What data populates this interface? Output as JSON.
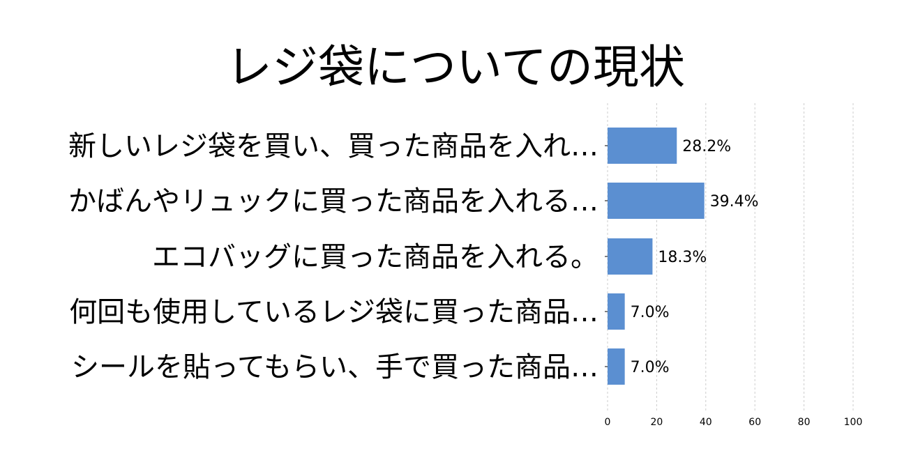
{
  "chart_data": {
    "type": "bar",
    "orientation": "horizontal",
    "title": "レジ袋についての現状",
    "categories": [
      "新しいレジ袋を買い、買った商品を入れ…",
      "かばんやリュックに買った商品を入れる…",
      "エコバッグに買った商品を入れる。",
      "何回も使用しているレジ袋に買った商品…",
      "シールを貼ってもらい、手で買った商品…"
    ],
    "values": [
      28.2,
      39.4,
      18.3,
      7.0,
      7.0
    ],
    "value_labels": [
      "28.2%",
      "39.4%",
      "18.3%",
      "7.0%",
      "7.0%"
    ],
    "x_ticks": [
      "0",
      "20",
      "40",
      "60",
      "80",
      "100"
    ],
    "xlim": [
      0,
      100
    ],
    "grid": true,
    "bar_color": "#5b8fd1",
    "grid_color": "#cccccc"
  }
}
